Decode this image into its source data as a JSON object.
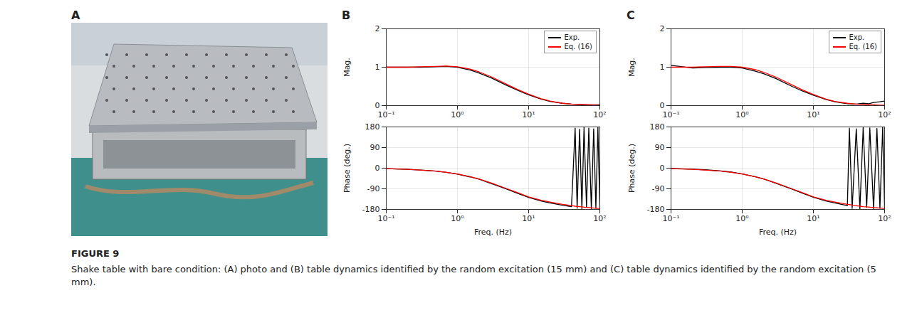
{
  "figure": {
    "label": "FIGURE 9",
    "caption": "Shake table with bare condition: (A) photo and (B) table dynamics identified by the random excitation (15 mm) and (C) table dynamics identified by the random excitation (5 mm)."
  },
  "photo": {
    "panel_label": "A"
  },
  "chart_data": [
    {
      "type": "line",
      "panel_label": "B",
      "ylabel": "Mag.",
      "log": "x",
      "grid": true,
      "legend": "upper right",
      "xlim": [
        0.1,
        100
      ],
      "xticks": [
        {
          "value": 0.1,
          "label": "10⁻¹"
        },
        {
          "value": 1,
          "label": "10⁰"
        },
        {
          "value": 10,
          "label": "10¹"
        },
        {
          "value": 100,
          "label": "10²"
        }
      ],
      "ylim": [
        0,
        2
      ],
      "yticks": [
        0,
        1,
        2
      ],
      "x": [
        0.1,
        0.2,
        0.3,
        0.5,
        0.7,
        1,
        1.5,
        2,
        3,
        5,
        7,
        10,
        15,
        20,
        30,
        40,
        50,
        70,
        100
      ],
      "series": [
        {
          "name": "Exp.",
          "color": "#000000",
          "values": [
            1.0,
            1.0,
            1.0,
            1.01,
            1.02,
            1.0,
            0.93,
            0.85,
            0.72,
            0.52,
            0.4,
            0.28,
            0.17,
            0.11,
            0.06,
            0.04,
            0.03,
            0.02,
            0.02
          ]
        },
        {
          "name": "Eq. (16)",
          "color": "#ff0000",
          "values": [
            1.0,
            1.0,
            1.01,
            1.02,
            1.03,
            1.01,
            0.95,
            0.88,
            0.75,
            0.55,
            0.42,
            0.3,
            0.18,
            0.12,
            0.06,
            0.04,
            0.03,
            0.02,
            0.01
          ]
        }
      ]
    },
    {
      "type": "line",
      "xlabel": "Freq. (Hz)",
      "ylabel": "Phase (deg.)",
      "log": "x",
      "grid": true,
      "xlim": [
        0.1,
        100
      ],
      "xticks": [
        {
          "value": 0.1,
          "label": "10⁻¹"
        },
        {
          "value": 1,
          "label": "10⁰"
        },
        {
          "value": 10,
          "label": "10¹"
        },
        {
          "value": 100,
          "label": "10²"
        }
      ],
      "ylim": [
        -180,
        180
      ],
      "yticks": [
        -180,
        -90,
        0,
        90,
        180
      ],
      "x": [
        0.1,
        0.2,
        0.3,
        0.5,
        0.7,
        1,
        1.5,
        2,
        3,
        5,
        7,
        10,
        15,
        20,
        30,
        40,
        45,
        48,
        52,
        56,
        60,
        65,
        70,
        76,
        82,
        88,
        94,
        100
      ],
      "series": [
        {
          "name": "Exp.",
          "color": "#000000",
          "values": [
            -2,
            -5,
            -8,
            -13,
            -18,
            -26,
            -38,
            -48,
            -67,
            -92,
            -110,
            -128,
            -143,
            -152,
            -162,
            -168,
            175,
            -175,
            170,
            -178,
            178,
            -170,
            175,
            -178,
            172,
            -175,
            178,
            -172
          ]
        },
        {
          "name": "Eq. (16)",
          "color": "#ff0000",
          "values": [
            -2,
            -5,
            -8,
            -13,
            -18,
            -25,
            -37,
            -47,
            -65,
            -90,
            -107,
            -125,
            -140,
            -148,
            -158,
            -163,
            -166,
            -167,
            -168,
            -169,
            -170,
            -171,
            -172,
            -173,
            -174,
            -175,
            -176,
            -176
          ]
        }
      ]
    },
    {
      "type": "line",
      "panel_label": "C",
      "ylabel": "Mag.",
      "log": "x",
      "grid": true,
      "legend": "upper right",
      "xlim": [
        0.1,
        100
      ],
      "xticks": [
        {
          "value": 0.1,
          "label": "10⁻¹"
        },
        {
          "value": 1,
          "label": "10⁰"
        },
        {
          "value": 10,
          "label": "10¹"
        },
        {
          "value": 100,
          "label": "10²"
        }
      ],
      "ylim": [
        0,
        2
      ],
      "yticks": [
        0,
        1,
        2
      ],
      "x": [
        0.1,
        0.2,
        0.3,
        0.5,
        0.7,
        1,
        1.5,
        2,
        3,
        5,
        7,
        10,
        15,
        20,
        30,
        40,
        50,
        60,
        70,
        85,
        100
      ],
      "series": [
        {
          "name": "Exp.",
          "color": "#000000",
          "values": [
            1.05,
            0.98,
            0.99,
            1.0,
            1.0,
            0.98,
            0.9,
            0.83,
            0.7,
            0.5,
            0.38,
            0.27,
            0.16,
            0.1,
            0.05,
            0.04,
            0.06,
            0.05,
            0.08,
            0.1,
            0.12
          ]
        },
        {
          "name": "Eq. (16)",
          "color": "#ff0000",
          "values": [
            1.0,
            1.0,
            1.01,
            1.02,
            1.02,
            1.0,
            0.94,
            0.87,
            0.74,
            0.54,
            0.41,
            0.29,
            0.17,
            0.11,
            0.06,
            0.04,
            0.03,
            0.02,
            0.02,
            0.01,
            0.01
          ]
        }
      ]
    },
    {
      "type": "line",
      "xlabel": "Freq. (Hz)",
      "ylabel": "Phase (deg.)",
      "log": "x",
      "grid": true,
      "xlim": [
        0.1,
        100
      ],
      "xticks": [
        {
          "value": 0.1,
          "label": "10⁻¹"
        },
        {
          "value": 1,
          "label": "10⁰"
        },
        {
          "value": 10,
          "label": "10¹"
        },
        {
          "value": 100,
          "label": "10²"
        }
      ],
      "ylim": [
        -180,
        180
      ],
      "yticks": [
        -180,
        -90,
        0,
        90,
        180
      ],
      "x": [
        0.1,
        0.2,
        0.3,
        0.5,
        0.7,
        1,
        1.5,
        2,
        3,
        5,
        7,
        10,
        15,
        20,
        30,
        32,
        35,
        40,
        45,
        50,
        56,
        62,
        70,
        78,
        86,
        94,
        100
      ],
      "series": [
        {
          "name": "Exp.",
          "color": "#000000",
          "values": [
            -1,
            -4,
            -7,
            -12,
            -17,
            -25,
            -37,
            -47,
            -66,
            -91,
            -109,
            -127,
            -143,
            -152,
            -163,
            175,
            -176,
            172,
            -178,
            177,
            -171,
            176,
            -177,
            173,
            -175,
            178,
            -173
          ]
        },
        {
          "name": "Eq. (16)",
          "color": "#ff0000",
          "values": [
            -2,
            -5,
            -8,
            -13,
            -18,
            -25,
            -37,
            -47,
            -65,
            -90,
            -107,
            -125,
            -140,
            -148,
            -158,
            -159,
            -161,
            -163,
            -166,
            -168,
            -169,
            -170,
            -172,
            -173,
            -174,
            -175,
            -176
          ]
        }
      ]
    }
  ]
}
